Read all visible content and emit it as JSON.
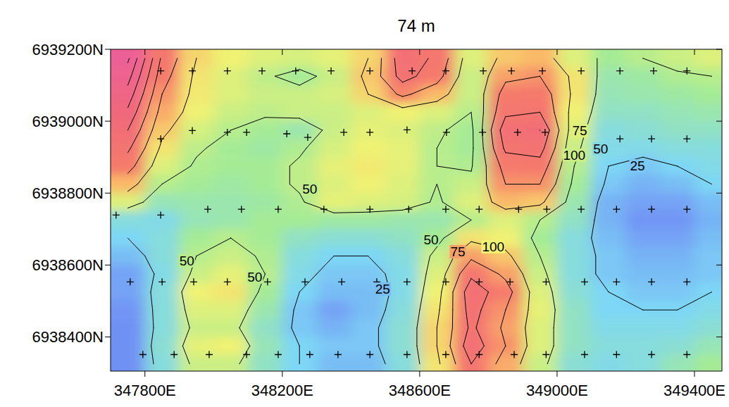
{
  "chart_data": {
    "type": "contour",
    "title": "74 m",
    "xlim": [
      347700,
      349480
    ],
    "ylim": [
      6938305,
      6939200
    ],
    "xticks": [
      {
        "value": 347800,
        "label": "347800E"
      },
      {
        "value": 348200,
        "label": "348200E"
      },
      {
        "value": 348600,
        "label": "348600E"
      },
      {
        "value": 349000,
        "label": "349000E"
      },
      {
        "value": 349400,
        "label": "349400E"
      }
    ],
    "yticks": [
      {
        "value": 6938400,
        "label": "6938400N"
      },
      {
        "value": 6938600,
        "label": "6938600N"
      },
      {
        "value": 6938800,
        "label": "6938800N"
      },
      {
        "value": 6939000,
        "label": "6939000N"
      },
      {
        "value": 6939200,
        "label": "6939200N"
      }
    ],
    "zlim": [
      0,
      250
    ],
    "contour_levels": [
      25,
      50,
      75,
      100,
      125,
      150,
      175,
      200,
      225
    ],
    "cells": {
      "x": [
        347750,
        347850,
        347950,
        348050,
        348150,
        348250,
        348350,
        348450,
        348550,
        348650,
        348750,
        348850,
        348950,
        349050,
        349150,
        349250,
        349350,
        349450
      ],
      "y": [
        6939175,
        6939125,
        6939075,
        6939025,
        6938975,
        6938925,
        6938875,
        6938825,
        6938775,
        6938725,
        6938675,
        6938625,
        6938575,
        6938525,
        6938475,
        6938425,
        6938375,
        6938325
      ],
      "values": [
        [
          230,
          120,
          75,
          65,
          60,
          58,
          62,
          75,
          140,
          120,
          60,
          80,
          85,
          60,
          45,
          50,
          55,
          60
        ],
        [
          210,
          110,
          70,
          60,
          52,
          45,
          55,
          80,
          135,
          110,
          55,
          95,
          100,
          70,
          40,
          42,
          48,
          50
        ],
        [
          190,
          100,
          68,
          60,
          55,
          55,
          58,
          75,
          105,
          85,
          55,
          110,
          115,
          70,
          38,
          40,
          42,
          45
        ],
        [
          170,
          90,
          65,
          55,
          52,
          55,
          55,
          60,
          65,
          60,
          50,
          120,
          125,
          65,
          35,
          35,
          38,
          40
        ],
        [
          150,
          80,
          58,
          50,
          45,
          40,
          55,
          62,
          60,
          52,
          45,
          140,
          150,
          60,
          30,
          32,
          35,
          35
        ],
        [
          130,
          70,
          52,
          45,
          42,
          48,
          58,
          65,
          62,
          50,
          45,
          130,
          135,
          55,
          28,
          28,
          30,
          30
        ],
        [
          110,
          60,
          48,
          45,
          45,
          52,
          62,
          68,
          62,
          50,
          48,
          110,
          115,
          50,
          25,
          22,
          25,
          28
        ],
        [
          85,
          50,
          45,
          42,
          45,
          52,
          60,
          65,
          60,
          50,
          55,
          100,
          100,
          45,
          22,
          18,
          20,
          25
        ],
        [
          60,
          38,
          40,
          40,
          42,
          48,
          62,
          60,
          58,
          48,
          60,
          85,
          80,
          40,
          18,
          15,
          15,
          20
        ],
        [
          30,
          28,
          38,
          40,
          45,
          45,
          42,
          42,
          40,
          40,
          50,
          60,
          50,
          35,
          18,
          12,
          12,
          18
        ],
        [
          25,
          30,
          45,
          50,
          45,
          35,
          32,
          32,
          35,
          45,
          70,
          65,
          45,
          30,
          20,
          15,
          15,
          20
        ],
        [
          20,
          30,
          50,
          55,
          48,
          30,
          25,
          25,
          30,
          55,
          95,
          80,
          50,
          30,
          22,
          18,
          18,
          22
        ],
        [
          15,
          28,
          55,
          62,
          50,
          28,
          22,
          22,
          28,
          60,
          120,
          95,
          55,
          30,
          22,
          20,
          20,
          22
        ],
        [
          15,
          30,
          65,
          70,
          45,
          25,
          20,
          20,
          28,
          65,
          140,
          110,
          60,
          32,
          25,
          22,
          22,
          25
        ],
        [
          12,
          30,
          60,
          60,
          40,
          22,
          15,
          20,
          30,
          70,
          135,
          100,
          62,
          35,
          25,
          25,
          25,
          28
        ],
        [
          10,
          30,
          55,
          55,
          35,
          22,
          18,
          22,
          32,
          75,
          130,
          95,
          60,
          35,
          28,
          28,
          28,
          32
        ],
        [
          10,
          32,
          62,
          65,
          38,
          25,
          22,
          22,
          32,
          75,
          140,
          100,
          60,
          35,
          30,
          30,
          32,
          38
        ],
        [
          10,
          30,
          55,
          55,
          35,
          25,
          20,
          20,
          30,
          70,
          125,
          90,
          55,
          32,
          28,
          30,
          38,
          45
        ]
      ]
    },
    "marker": "plus",
    "points": {
      "x": [
        347846,
        347938,
        348040,
        348141,
        348239,
        348342,
        348455,
        348578,
        348676,
        348785,
        348867,
        348957,
        349070,
        349183,
        349281,
        349378,
        347846,
        347938,
        348040,
        348096,
        348213,
        348274,
        348379,
        348455,
        348563,
        348678,
        348783,
        348885,
        348965,
        349070,
        349183,
        349275,
        349378,
        347716,
        347846,
        347983,
        348081,
        348188,
        348321,
        348455,
        348568,
        348676,
        348773,
        348888,
        348970,
        349070,
        349173,
        349275,
        349378,
        347757,
        347850,
        347942,
        348040,
        348157,
        348266,
        348373,
        348475,
        348563,
        348676,
        348773,
        348863,
        348968,
        349080,
        349173,
        349275,
        349378,
        347794,
        347885,
        347987,
        348096,
        348188,
        348280,
        348362,
        348455,
        348563,
        348676,
        348773,
        348875,
        348968,
        349080,
        349173,
        349275,
        349378
      ],
      "y": [
        6939140,
        6939140,
        6939140,
        6939140,
        6939140,
        6939140,
        6939140,
        6939140,
        6939140,
        6939140,
        6939140,
        6939140,
        6939140,
        6939140,
        6939140,
        6939140,
        6938951,
        6938974,
        6938969,
        6938969,
        6938965,
        6938955,
        6938969,
        6938969,
        6938976,
        6938969,
        6938969,
        6938969,
        6938969,
        6938969,
        6938951,
        6938951,
        6938951,
        6938739,
        6938739,
        6938755,
        6938755,
        6938755,
        6938755,
        6938755,
        6938755,
        6938755,
        6938755,
        6938755,
        6938755,
        6938755,
        6938755,
        6938755,
        6938755,
        6938553,
        6938553,
        6938553,
        6938553,
        6938553,
        6938553,
        6938553,
        6938553,
        6938553,
        6938553,
        6938553,
        6938553,
        6938553,
        6938553,
        6938553,
        6938553,
        6938553,
        6938351,
        6938351,
        6938351,
        6938351,
        6938351,
        6938351,
        6938351,
        6938351,
        6938351,
        6938351,
        6938351,
        6938351,
        6938351,
        6938351,
        6938351,
        6938351,
        6938351
      ]
    },
    "annotations": [
      {
        "text": "50",
        "x": 347922,
        "y": 6938612
      },
      {
        "text": "50",
        "x": 348120,
        "y": 6938567
      },
      {
        "text": "25",
        "x": 348492,
        "y": 6938533
      },
      {
        "text": "50",
        "x": 348280,
        "y": 6938812
      },
      {
        "text": "50",
        "x": 348633,
        "y": 6938671
      },
      {
        "text": "75",
        "x": 348711,
        "y": 6938637
      },
      {
        "text": "100",
        "x": 348814,
        "y": 6938651
      },
      {
        "text": "100",
        "x": 349050,
        "y": 6938906
      },
      {
        "text": "75",
        "x": 349066,
        "y": 6938973
      },
      {
        "text": "50",
        "x": 349127,
        "y": 6938923
      },
      {
        "text": "25",
        "x": 349234,
        "y": 6938876
      }
    ]
  }
}
